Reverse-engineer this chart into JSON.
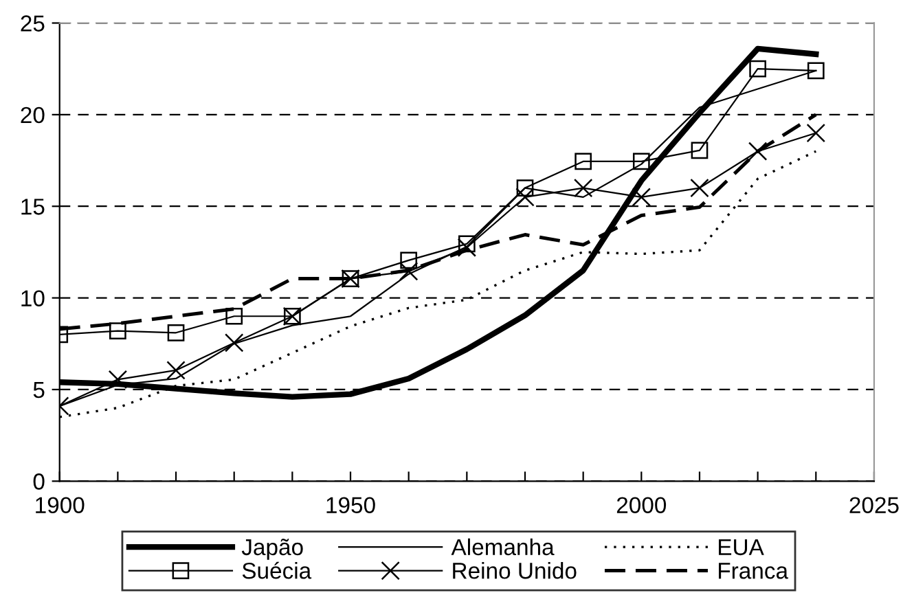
{
  "chart_data": {
    "type": "line",
    "categories": [
      "1900",
      null,
      null,
      null,
      null,
      "1950",
      null,
      null,
      null,
      null,
      "2000",
      null,
      null,
      null,
      "2025"
    ],
    "series": [
      {
        "name": "Japão",
        "color": "#000000",
        "line_style": "solid",
        "marker": "none",
        "values": [
          5.4,
          5.3,
          5.05,
          4.8,
          4.6,
          4.75,
          5.6,
          7.2,
          9.05,
          11.5,
          16.4,
          20.1,
          23.6,
          23.3,
          null
        ]
      },
      {
        "name": "Alemanha",
        "color": "#000000",
        "line_style": "solid",
        "marker": "none",
        "values": [
          4.1,
          5.25,
          5.6,
          7.5,
          8.5,
          9.0,
          11.3,
          12.8,
          16.0,
          15.5,
          17.3,
          20.4,
          21.4,
          22.4,
          null
        ]
      },
      {
        "name": "EUA",
        "color": "#000000",
        "line_style": "dotted",
        "marker": "none",
        "values": [
          3.5,
          4.0,
          5.2,
          5.55,
          7.0,
          8.45,
          9.45,
          9.9,
          11.5,
          12.5,
          12.4,
          12.6,
          16.5,
          18.0,
          null
        ]
      },
      {
        "name": "Suécia",
        "color": "#000000",
        "line_style": "solid",
        "marker": "square",
        "values": [
          8.0,
          8.2,
          8.1,
          9.0,
          9.0,
          11.05,
          12.05,
          12.95,
          16.0,
          17.45,
          17.45,
          18.05,
          22.5,
          22.4,
          null
        ]
      },
      {
        "name": "Reino Unido",
        "color": "#000000",
        "line_style": "solid",
        "marker": "cross",
        "values": [
          4.1,
          5.55,
          6.05,
          7.55,
          9.0,
          11.05,
          11.45,
          12.75,
          15.5,
          16.0,
          15.5,
          16.0,
          18.0,
          19.0,
          null
        ]
      },
      {
        "name": "Franca",
        "color": "#000000",
        "line_style": "dashed",
        "marker": "none",
        "values": [
          8.3,
          8.6,
          9.0,
          9.4,
          11.05,
          11.05,
          11.5,
          12.6,
          13.45,
          12.9,
          14.5,
          14.95,
          18.0,
          20.0,
          null
        ]
      }
    ],
    "ylim": [
      0,
      25
    ],
    "yticks": [
      0,
      5,
      10,
      15,
      20,
      25
    ],
    "grid": "y",
    "legend": "bottom"
  }
}
